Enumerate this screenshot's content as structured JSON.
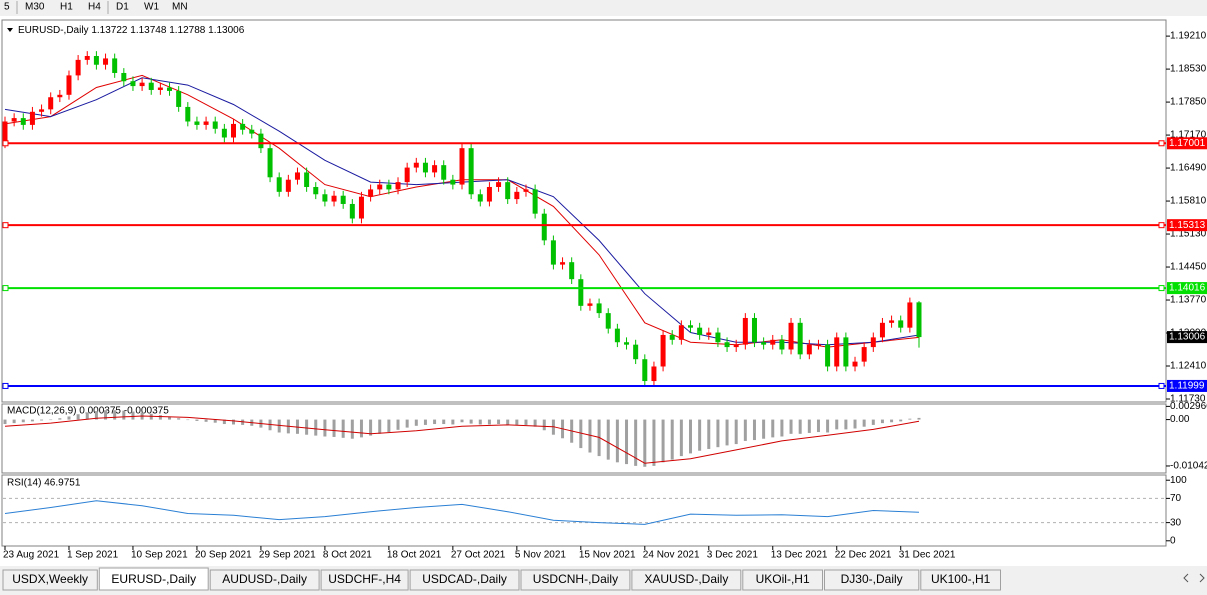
{
  "toolbar": [
    "5",
    "M30",
    "H1",
    "H4",
    "D1",
    "W1",
    "MN"
  ],
  "tabs": [
    "USDX,Weekly",
    "EURUSD-,Daily",
    "AUDUSD-,Daily",
    "USDCHF-,H4",
    "USDCAD-,Daily",
    "USDCNH-,Daily",
    "XAUUSD-,Daily",
    "UKOil-,H1",
    "DJ30-,Daily",
    "UK100-,H1"
  ],
  "active_tab": 1,
  "chart_data": [
    {
      "type": "candlestick",
      "title": "EURUSD-,Daily",
      "up_color": "#ff0000",
      "down_color": "#00c000",
      "categories": [
        "23 Aug 2021",
        null,
        null,
        null,
        null,
        null,
        null,
        "1 Sep 2021",
        null,
        null,
        null,
        null,
        null,
        null,
        "10 Sep 2021",
        null,
        null,
        null,
        null,
        null,
        null,
        "20 Sep 2021",
        null,
        null,
        null,
        null,
        null,
        null,
        "29 Sep 2021",
        null,
        null,
        null,
        null,
        null,
        null,
        "8 Oct 2021",
        null,
        null,
        null,
        null,
        null,
        null,
        "18 Oct 2021",
        null,
        null,
        null,
        null,
        null,
        null,
        "27 Oct 2021",
        null,
        null,
        null,
        null,
        null,
        null,
        "5 Nov 2021",
        null,
        null,
        null,
        null,
        null,
        null,
        "15 Nov 2021",
        null,
        null,
        null,
        null,
        null,
        null,
        "24 Nov 2021",
        null,
        null,
        null,
        null,
        null,
        null,
        "3 Dec 2021",
        null,
        null,
        null,
        null,
        null,
        null,
        "13 Dec 2021",
        null,
        null,
        null,
        null,
        null,
        null,
        "22 Dec 2021",
        null,
        null,
        null,
        null,
        null,
        null,
        "31 Dec 2021",
        null,
        null
      ],
      "open": [
        1.17,
        1.1745,
        1.1752,
        1.1738,
        1.1765,
        1.177,
        1.1795,
        1.18,
        1.184,
        1.1872,
        1.188,
        1.1862,
        1.1875,
        1.1845,
        1.1828,
        1.1818,
        1.1825,
        1.181,
        1.1815,
        1.1808,
        1.1775,
        1.1745,
        1.1738,
        1.1745,
        1.173,
        1.1712,
        1.174,
        1.1728,
        1.172,
        1.169,
        1.163,
        1.16,
        1.1625,
        1.164,
        1.161,
        1.1595,
        1.158,
        1.1592,
        1.1575,
        1.1545,
        1.159,
        1.1605,
        1.1615,
        1.1605,
        1.162,
        1.165,
        1.166,
        1.164,
        1.1655,
        1.1625,
        1.1615,
        1.169,
        1.1595,
        1.158,
        1.161,
        1.162,
        1.1585,
        1.16,
        1.1605,
        1.1555,
        1.15,
        1.145,
        1.1455,
        1.142,
        1.1365,
        1.137,
        1.135,
        1.1318,
        1.129,
        1.1285,
        1.1255,
        1.121,
        1.124,
        1.1305,
        1.1295,
        1.1325,
        1.132,
        1.1305,
        1.131,
        1.129,
        1.128,
        1.1285,
        1.134,
        1.129,
        1.1285,
        1.1295,
        1.1275,
        1.133,
        1.1265,
        1.1285,
        1.1285,
        1.124,
        1.13,
        1.124,
        1.125,
        1.128,
        1.13,
        1.133,
        1.1335,
        1.132,
        1.13722
      ],
      "high": [
        1.1755,
        1.1762,
        1.1762,
        1.1775,
        1.178,
        1.1805,
        1.181,
        1.185,
        1.1882,
        1.189,
        1.189,
        1.1885,
        1.1885,
        1.1855,
        1.1838,
        1.1835,
        1.1835,
        1.1825,
        1.1825,
        1.1818,
        1.1785,
        1.1755,
        1.1755,
        1.1755,
        1.174,
        1.175,
        1.175,
        1.1738,
        1.173,
        1.17,
        1.164,
        1.1635,
        1.165,
        1.165,
        1.162,
        1.1605,
        1.1602,
        1.1602,
        1.1585,
        1.16,
        1.1615,
        1.1625,
        1.1625,
        1.163,
        1.166,
        1.167,
        1.167,
        1.1665,
        1.1665,
        1.1635,
        1.17,
        1.17,
        1.1605,
        1.162,
        1.163,
        1.163,
        1.161,
        1.1615,
        1.1615,
        1.1565,
        1.151,
        1.1465,
        1.1465,
        1.143,
        1.138,
        1.138,
        1.136,
        1.1328,
        1.13,
        1.1295,
        1.1265,
        1.125,
        1.1315,
        1.1315,
        1.1335,
        1.1335,
        1.133,
        1.132,
        1.132,
        1.13,
        1.1295,
        1.135,
        1.135,
        1.13,
        1.1305,
        1.1305,
        1.134,
        1.134,
        1.1295,
        1.1295,
        1.1295,
        1.131,
        1.131,
        1.126,
        1.129,
        1.131,
        1.134,
        1.1345,
        1.1345,
        1.1382,
        1.13748
      ],
      "low": [
        1.169,
        1.1735,
        1.1728,
        1.1728,
        1.1755,
        1.176,
        1.1785,
        1.179,
        1.183,
        1.1862,
        1.1852,
        1.1852,
        1.1835,
        1.1818,
        1.1808,
        1.1808,
        1.18,
        1.18,
        1.1798,
        1.1765,
        1.1735,
        1.1728,
        1.1728,
        1.172,
        1.1702,
        1.1702,
        1.1718,
        1.171,
        1.168,
        1.162,
        1.159,
        1.159,
        1.1615,
        1.16,
        1.1585,
        1.157,
        1.157,
        1.1565,
        1.1535,
        1.1535,
        1.158,
        1.1595,
        1.1595,
        1.1595,
        1.161,
        1.164,
        1.163,
        1.163,
        1.1615,
        1.1605,
        1.1605,
        1.1585,
        1.157,
        1.157,
        1.16,
        1.1575,
        1.1575,
        1.159,
        1.1545,
        1.149,
        1.144,
        1.144,
        1.141,
        1.1355,
        1.1355,
        1.134,
        1.1308,
        1.128,
        1.1275,
        1.1245,
        1.12,
        1.12,
        1.123,
        1.1285,
        1.1285,
        1.131,
        1.1295,
        1.1295,
        1.128,
        1.127,
        1.127,
        1.1275,
        1.128,
        1.1275,
        1.1275,
        1.1265,
        1.1265,
        1.1255,
        1.1255,
        1.1275,
        1.123,
        1.123,
        1.123,
        1.123,
        1.124,
        1.127,
        1.129,
        1.132,
        1.131,
        1.131,
        1.12788
      ],
      "close": [
        1.1745,
        1.1752,
        1.1738,
        1.1765,
        1.177,
        1.1795,
        1.18,
        1.184,
        1.1872,
        1.188,
        1.1862,
        1.1875,
        1.1845,
        1.1828,
        1.1818,
        1.1825,
        1.181,
        1.1815,
        1.1808,
        1.1775,
        1.1745,
        1.1738,
        1.1745,
        1.173,
        1.1712,
        1.174,
        1.1728,
        1.172,
        1.169,
        1.163,
        1.16,
        1.1625,
        1.164,
        1.161,
        1.1595,
        1.158,
        1.1592,
        1.1575,
        1.1545,
        1.159,
        1.1605,
        1.1615,
        1.1605,
        1.162,
        1.165,
        1.166,
        1.164,
        1.1655,
        1.1625,
        1.1615,
        1.169,
        1.1595,
        1.158,
        1.161,
        1.162,
        1.1585,
        1.16,
        1.1605,
        1.1555,
        1.15,
        1.145,
        1.1455,
        1.142,
        1.1365,
        1.137,
        1.135,
        1.1318,
        1.129,
        1.1285,
        1.1255,
        1.121,
        1.124,
        1.1305,
        1.1295,
        1.1325,
        1.132,
        1.1305,
        1.131,
        1.129,
        1.128,
        1.1285,
        1.134,
        1.129,
        1.1285,
        1.1295,
        1.1275,
        1.133,
        1.1265,
        1.1285,
        1.1285,
        1.124,
        1.13,
        1.124,
        1.125,
        1.128,
        1.13,
        1.133,
        1.1335,
        1.132,
        1.1372,
        1.13006
      ],
      "moving_averages": [
        {
          "color": "#e00000",
          "x": [
            0,
            5,
            10,
            15,
            20,
            25,
            30,
            35,
            40,
            45,
            50,
            55,
            60,
            65,
            70,
            75,
            80,
            85,
            90,
            95,
            100
          ],
          "values": [
            1.174,
            1.1755,
            1.1815,
            1.184,
            1.18,
            1.175,
            1.169,
            1.1615,
            1.159,
            1.161,
            1.1625,
            1.1625,
            1.157,
            1.147,
            1.133,
            1.129,
            1.1285,
            1.1295,
            1.128,
            1.129,
            1.13
          ]
        },
        {
          "color": "#1a1aa0",
          "x": [
            0,
            5,
            10,
            15,
            20,
            25,
            30,
            35,
            40,
            45,
            50,
            55,
            60,
            65,
            70,
            75,
            80,
            85,
            90,
            95,
            100
          ],
          "values": [
            1.177,
            1.1755,
            1.179,
            1.1835,
            1.182,
            1.178,
            1.1725,
            1.1665,
            1.162,
            1.1615,
            1.162,
            1.1625,
            1.159,
            1.15,
            1.139,
            1.131,
            1.129,
            1.129,
            1.1285,
            1.129,
            1.1305
          ]
        }
      ],
      "hlines": [
        {
          "value": 1.17001,
          "color": "#ff0000"
        },
        {
          "value": 1.15313,
          "color": "#ff0000"
        },
        {
          "value": 1.14016,
          "color": "#00e000"
        },
        {
          "value": 1.11999,
          "color": "#0000ff"
        }
      ],
      "ylim": [
        1.11668,
        1.19542
      ],
      "yticks": [
        {
          "value": 1.1921,
          "label": "1.19210"
        },
        {
          "value": 1.1853,
          "label": "1.18530"
        },
        {
          "value": 1.1785,
          "label": "1.17850"
        },
        {
          "value": 1.1717,
          "label": "1.17170"
        },
        {
          "value": 1.1649,
          "label": "1.16490"
        },
        {
          "value": 1.1581,
          "label": "1.15810"
        },
        {
          "value": 1.1513,
          "label": "1.15130"
        },
        {
          "value": 1.1445,
          "label": "1.14450"
        },
        {
          "value": 1.1377,
          "label": "1.13770"
        },
        {
          "value": 1.1309,
          "label": "1.13090"
        },
        {
          "value": 1.1241,
          "label": "1.12410"
        },
        {
          "value": 1.1173,
          "label": "1.11730"
        }
      ]
    },
    {
      "type": "macd",
      "title": "MACD(12,26,9) 0.000375 -0.000375",
      "color": "#a0a0a0",
      "histogram": [
        -0.001,
        -0.0008,
        -0.0006,
        -0.0004,
        -0.0002,
        0.0,
        0.0003,
        0.0007,
        0.0012,
        0.0016,
        0.0019,
        0.0021,
        0.0021,
        0.002,
        0.0018,
        0.0016,
        0.0013,
        0.001,
        0.0007,
        0.0003,
        0.0,
        -0.0003,
        -0.0005,
        -0.0007,
        -0.001,
        -0.0011,
        -0.0012,
        -0.0014,
        -0.0018,
        -0.0024,
        -0.0029,
        -0.0031,
        -0.0032,
        -0.0034,
        -0.0036,
        -0.0038,
        -0.0039,
        -0.0041,
        -0.0043,
        -0.004,
        -0.0036,
        -0.0032,
        -0.0028,
        -0.0023,
        -0.0018,
        -0.0014,
        -0.0012,
        -0.001,
        -0.001,
        -0.0011,
        -0.0006,
        -0.0009,
        -0.0011,
        -0.0011,
        -0.001,
        -0.0012,
        -0.0012,
        -0.0012,
        -0.0016,
        -0.0024,
        -0.0034,
        -0.0042,
        -0.0052,
        -0.0064,
        -0.0074,
        -0.0082,
        -0.009,
        -0.0096,
        -0.01,
        -0.0104,
        -0.0106,
        -0.0104,
        -0.0096,
        -0.009,
        -0.0082,
        -0.0076,
        -0.007,
        -0.0066,
        -0.0062,
        -0.0058,
        -0.0055,
        -0.0048,
        -0.0046,
        -0.0043,
        -0.004,
        -0.0038,
        -0.0032,
        -0.0032,
        -0.003,
        -0.0028,
        -0.0029,
        -0.0022,
        -0.0022,
        -0.002,
        -0.0016,
        -0.0012,
        -0.0008,
        -0.0006,
        -0.0004,
        0.0002,
        0.000375
      ],
      "signal": {
        "color": "#d00000",
        "x": [
          0,
          5,
          10,
          15,
          20,
          25,
          30,
          35,
          40,
          45,
          50,
          55,
          60,
          65,
          70,
          75,
          80,
          85,
          90,
          95,
          100
        ],
        "values": [
          -0.0015,
          -0.0008,
          0.0003,
          0.0008,
          0.0005,
          -0.0003,
          -0.0013,
          -0.0023,
          -0.0032,
          -0.0025,
          -0.0015,
          -0.0012,
          -0.0016,
          -0.004,
          -0.0098,
          -0.0088,
          -0.0068,
          -0.0048,
          -0.0035,
          -0.0022,
          -0.000375
        ]
      },
      "ylim": [
        -0.012,
        0.0035
      ],
      "yticks": [
        0.002966,
        {
          "value": 0,
          "label": "0.00"
        },
        -0.01042
      ]
    },
    {
      "type": "rsi",
      "title": "RSI(14) 46.9751",
      "color": "#2a7fd4",
      "x": [
        0,
        5,
        10,
        15,
        20,
        25,
        30,
        35,
        40,
        45,
        50,
        55,
        60,
        65,
        70,
        75,
        80,
        85,
        90,
        95,
        100
      ],
      "values": [
        45,
        55,
        66,
        58,
        45,
        42,
        35,
        40,
        48,
        55,
        60,
        48,
        34,
        30,
        27,
        44,
        42,
        43,
        40,
        50,
        46.9751
      ],
      "levels": [
        70,
        30
      ],
      "ylim": [
        -8.6,
        108.6
      ],
      "yticks": [
        100,
        70,
        30,
        0
      ]
    }
  ]
}
